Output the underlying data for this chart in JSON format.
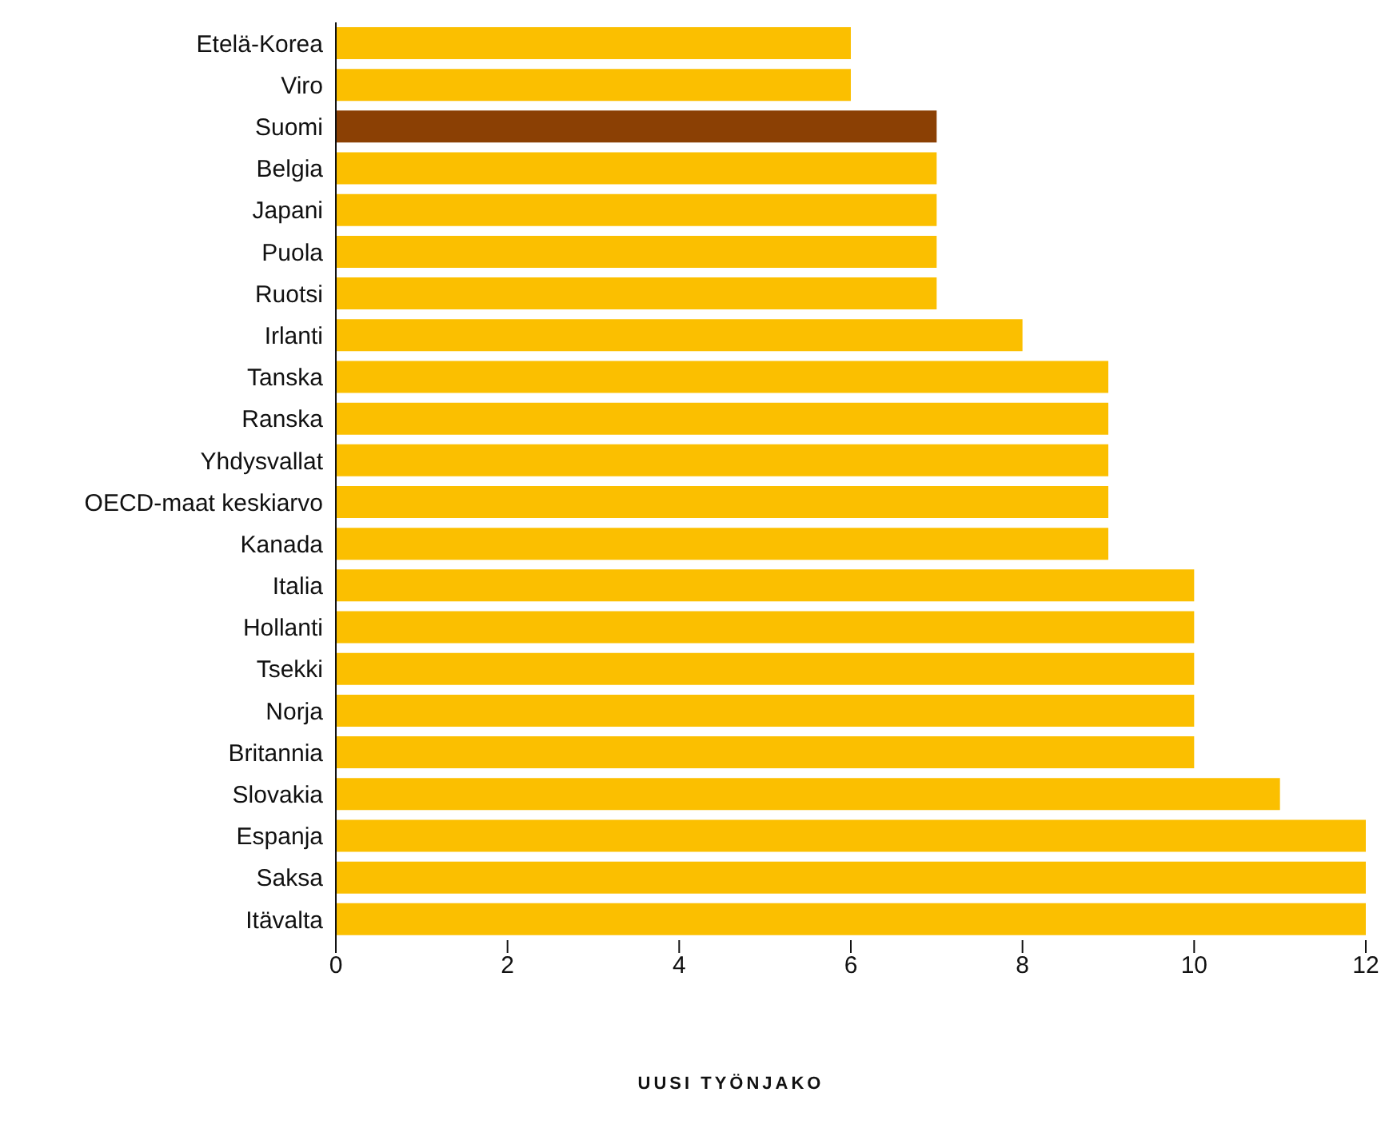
{
  "chart_data": {
    "type": "bar",
    "orientation": "horizontal",
    "categories": [
      "Etelä-Korea",
      "Viro",
      "Suomi",
      "Belgia",
      "Japani",
      "Puola",
      "Ruotsi",
      "Irlanti",
      "Tanska",
      "Ranska",
      "Yhdysvallat",
      "OECD-maat keskiarvo",
      "Kanada",
      "Italia",
      "Hollanti",
      "Tsekki",
      "Norja",
      "Britannia",
      "Slovakia",
      "Espanja",
      "Saksa",
      "Itävalta"
    ],
    "values": [
      6,
      6,
      7,
      7,
      7,
      7,
      7,
      8,
      9,
      9,
      9,
      9,
      9,
      10,
      10,
      10,
      10,
      10,
      11,
      12,
      12,
      12
    ],
    "colors": [
      "#fbbf00",
      "#fbbf00",
      "#8b4004",
      "#fbbf00",
      "#fbbf00",
      "#fbbf00",
      "#fbbf00",
      "#fbbf00",
      "#fbbf00",
      "#fbbf00",
      "#fbbf00",
      "#fbbf00",
      "#fbbf00",
      "#fbbf00",
      "#fbbf00",
      "#fbbf00",
      "#fbbf00",
      "#fbbf00",
      "#fbbf00",
      "#fbbf00",
      "#fbbf00",
      "#fbbf00"
    ],
    "xlim": [
      0,
      12
    ],
    "xticks": [
      0,
      2,
      4,
      6,
      8,
      10,
      12
    ],
    "grid": false,
    "legend": false,
    "annotations": [
      "UUSI TYÖNJAKO"
    ]
  }
}
